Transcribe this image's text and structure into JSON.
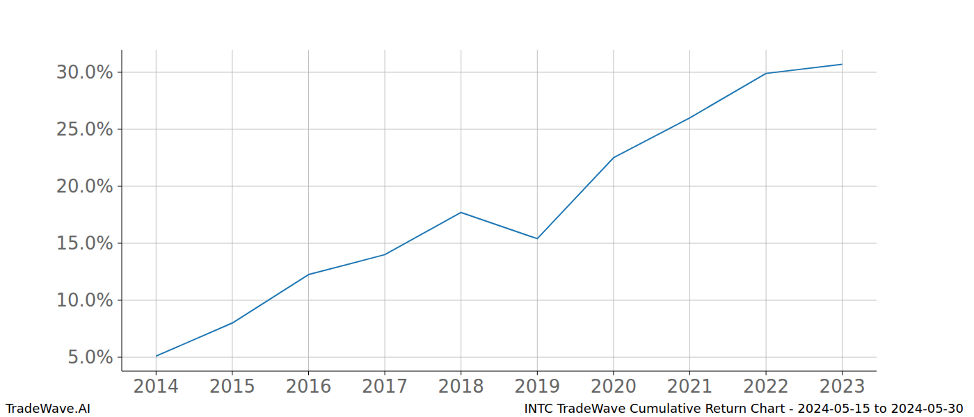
{
  "chart_data": {
    "type": "line",
    "title": "INTC TradeWave Cumulative Return Chart - 2024-05-15 to 2024-05-30",
    "source": "TradeWave.AI",
    "x": [
      2014,
      2015,
      2016,
      2017,
      2018,
      2019,
      2020,
      2021,
      2022,
      2023
    ],
    "values": [
      5.1,
      8.0,
      12.25,
      14.0,
      17.7,
      15.4,
      22.5,
      26.0,
      29.9,
      30.7
    ],
    "color": "#1f77b4",
    "xlim": [
      2013.55,
      2023.45
    ],
    "xticks": [
      2014,
      2015,
      2016,
      2017,
      2018,
      2019,
      2020,
      2021,
      2022,
      2023
    ],
    "ylim": [
      3.78,
      31.95
    ],
    "yticks": [
      {
        "value": 5,
        "label": "5.0%"
      },
      {
        "value": 10,
        "label": "10.0%"
      },
      {
        "value": 15,
        "label": "15.0%"
      },
      {
        "value": 20,
        "label": "20.0%"
      },
      {
        "value": 25,
        "label": "25.0%"
      },
      {
        "value": 30,
        "label": "30.0%"
      }
    ],
    "grid": true
  }
}
